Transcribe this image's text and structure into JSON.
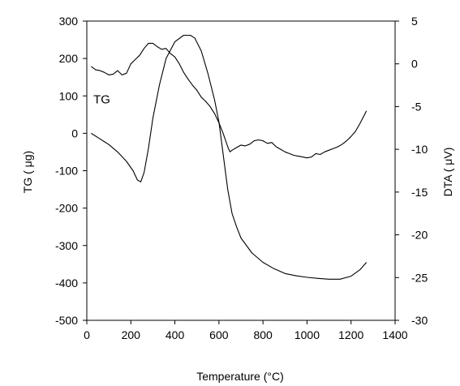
{
  "chart_data": {
    "type": "line",
    "xlabel": "Temperature (°C)",
    "ylabel_left": "TG ( μg)",
    "ylabel_right": "DTA ( μV)",
    "xlim": [
      0,
      1400
    ],
    "ylim_left": [
      -500,
      300
    ],
    "ylim_right": [
      -30,
      5
    ],
    "x_ticks": [
      "0",
      "200",
      "400",
      "600",
      "800",
      "1000",
      "1200",
      "1400"
    ],
    "y_left_ticks": [
      "300",
      "200",
      "100",
      "0",
      "-100",
      "-200",
      "-300",
      "-400",
      "-500"
    ],
    "y_right_ticks": [
      "5",
      "0",
      "-5",
      "-10",
      "-15",
      "-20",
      "-25",
      "-30"
    ],
    "grid": false,
    "legend": "none",
    "series": [
      {
        "name": "TG",
        "axis": "left",
        "label_at": [
          30,
          80
        ],
        "x": [
          20,
          60,
          100,
          140,
          180,
          210,
          230,
          245,
          260,
          280,
          300,
          330,
          360,
          400,
          440,
          470,
          490,
          520,
          550,
          580,
          600,
          620,
          640,
          660,
          680,
          700,
          750,
          800,
          850,
          900,
          950,
          1000,
          1050,
          1100,
          1150,
          1200,
          1240,
          1270
        ],
        "values": [
          0,
          -15,
          -30,
          -50,
          -75,
          -100,
          -125,
          -130,
          -105,
          -40,
          40,
          130,
          200,
          245,
          262,
          262,
          255,
          220,
          160,
          90,
          30,
          -60,
          -150,
          -215,
          -250,
          -280,
          -320,
          -345,
          -362,
          -375,
          -381,
          -385,
          -388,
          -390,
          -390,
          -382,
          -365,
          -345
        ]
      },
      {
        "name": "DTA",
        "axis": "right",
        "label_at": [
          30,
          220
        ],
        "x": [
          20,
          40,
          60,
          80,
          100,
          120,
          140,
          160,
          180,
          200,
          220,
          240,
          260,
          280,
          300,
          320,
          340,
          360,
          380,
          400,
          420,
          440,
          460,
          480,
          500,
          520,
          540,
          560,
          580,
          600,
          620,
          640,
          650,
          660,
          680,
          700,
          720,
          740,
          760,
          780,
          800,
          820,
          840,
          860,
          880,
          900,
          920,
          940,
          960,
          980,
          1000,
          1020,
          1040,
          1060,
          1080,
          1100,
          1120,
          1140,
          1160,
          1180,
          1200,
          1220,
          1240,
          1260,
          1270
        ],
        "values": [
          -0.3,
          -0.7,
          -0.8,
          -1.0,
          -1.3,
          -1.2,
          -0.8,
          -1.3,
          -1.1,
          0.0,
          0.5,
          1.0,
          1.8,
          2.4,
          2.4,
          2.0,
          1.7,
          1.8,
          1.2,
          0.8,
          0.0,
          -1.0,
          -1.8,
          -2.5,
          -3.1,
          -3.9,
          -4.4,
          -5.0,
          -5.8,
          -6.9,
          -8.2,
          -9.7,
          -10.3,
          -10.1,
          -9.8,
          -9.5,
          -9.6,
          -9.4,
          -9.0,
          -8.9,
          -9.0,
          -9.3,
          -9.2,
          -9.7,
          -10.0,
          -10.3,
          -10.5,
          -10.7,
          -10.8,
          -10.9,
          -11.0,
          -10.9,
          -10.5,
          -10.6,
          -10.3,
          -10.1,
          -9.9,
          -9.7,
          -9.4,
          -9.0,
          -8.5,
          -7.9,
          -7.0,
          -6.0,
          -5.5
        ]
      }
    ]
  }
}
